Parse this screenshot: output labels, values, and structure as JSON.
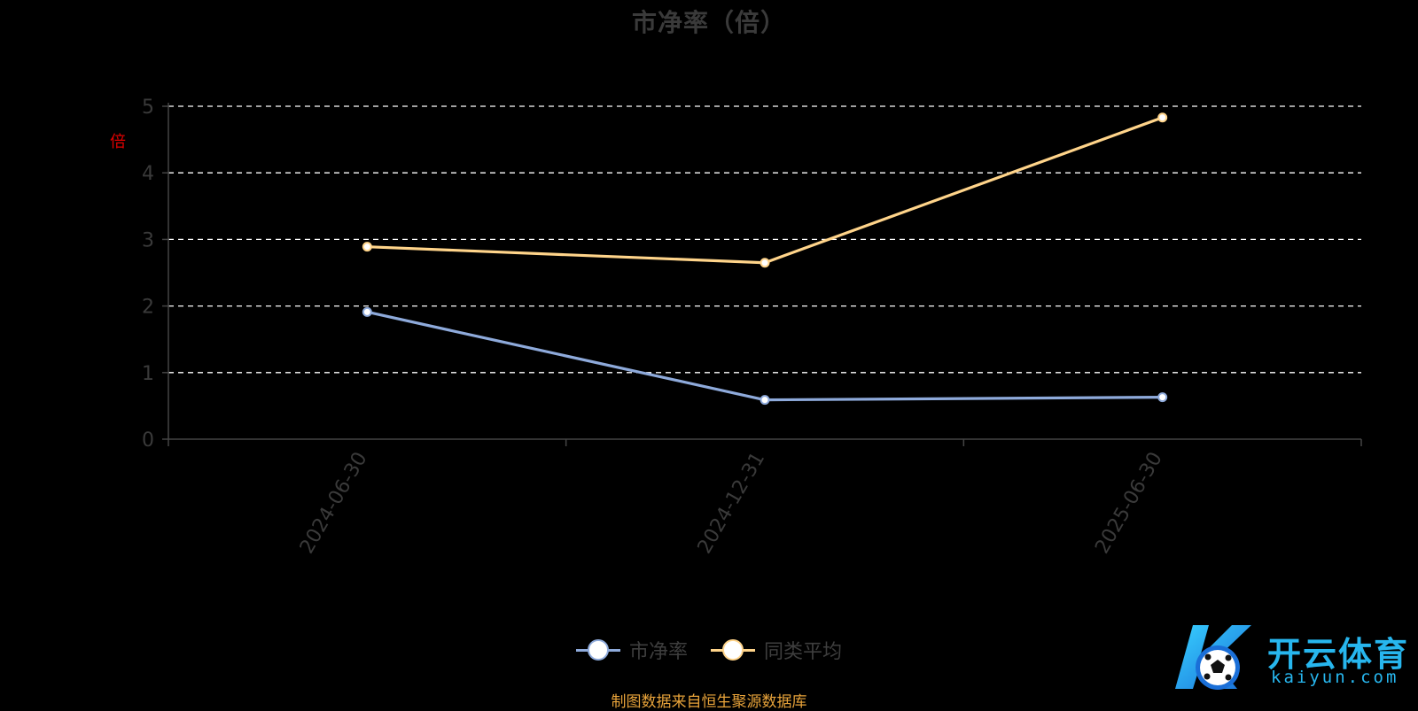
{
  "chart_data": {
    "type": "line",
    "title": "市净率（倍）",
    "ylabel": "倍",
    "xlabel": "",
    "categories": [
      "2024-06-30",
      "2024-12-31",
      "2025-06-30"
    ],
    "series": [
      {
        "name": "市净率",
        "values": [
          1.91,
          0.59,
          0.63
        ],
        "color": "#8eaadb"
      },
      {
        "name": "同类平均",
        "values": [
          2.89,
          2.65,
          4.83
        ],
        "color": "#ffd48a"
      }
    ],
    "ylim": [
      0,
      5
    ],
    "yticks": [
      "0",
      "1",
      "2",
      "3",
      "4",
      "5"
    ],
    "grid": true,
    "legend_position": "bottom-center"
  },
  "source_note": "制图数据来自恒生聚源数据库",
  "watermark": {
    "text": "开云体育",
    "url": "kaiyun.com"
  },
  "colors": {
    "background": "#000000",
    "axis": "#444444",
    "tick_text": "#3a3a3a",
    "grid": "#ffffff",
    "ylabel": "#e00000",
    "source": "#e8a33a"
  }
}
